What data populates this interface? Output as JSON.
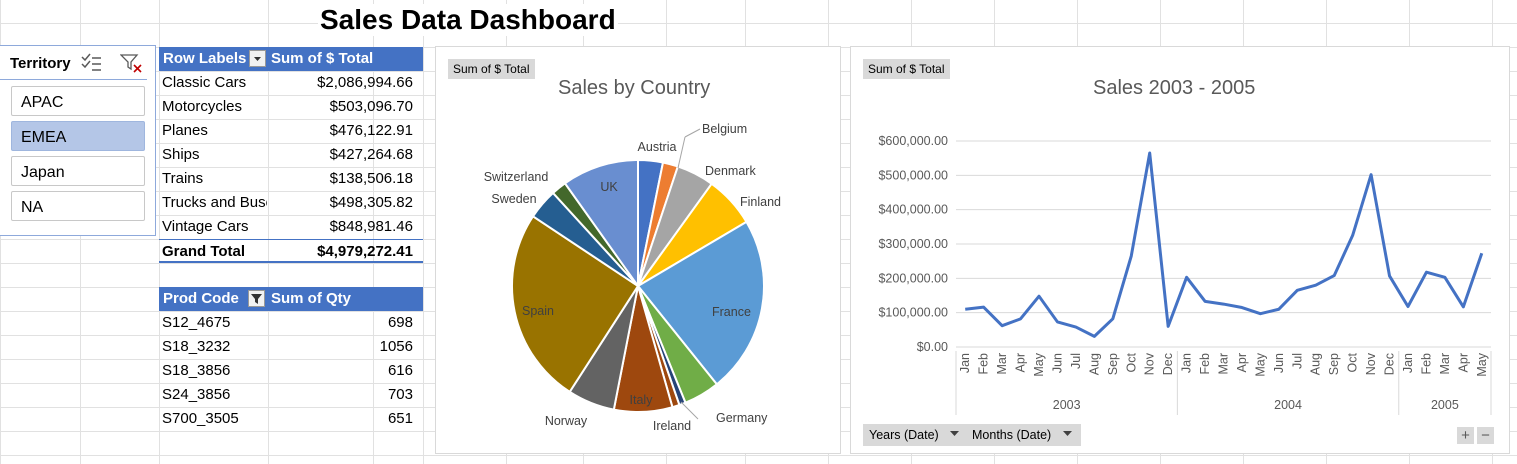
{
  "dashboard": {
    "title": "Sales Data Dashboard"
  },
  "slicer": {
    "title": "Territory",
    "items": [
      {
        "label": "APAC",
        "selected": false
      },
      {
        "label": "EMEA",
        "selected": true
      },
      {
        "label": "Japan",
        "selected": false
      },
      {
        "label": "NA",
        "selected": false
      }
    ]
  },
  "pivot_product_line": {
    "header_row": "Row Labels",
    "header_value": "Sum of $ Total",
    "rows": [
      {
        "label": "Classic Cars",
        "value": "$2,086,994.66"
      },
      {
        "label": "Motorcycles",
        "value": "$503,096.70"
      },
      {
        "label": "Planes",
        "value": "$476,122.91"
      },
      {
        "label": "Ships",
        "value": "$427,264.68"
      },
      {
        "label": "Trains",
        "value": "$138,506.18"
      },
      {
        "label": "Trucks and Buses",
        "value": "$498,305.82"
      },
      {
        "label": "Vintage Cars",
        "value": "$848,981.46"
      }
    ],
    "grand_total_label": "Grand Total",
    "grand_total_value": "$4,979,272.41"
  },
  "pivot_prod_code": {
    "header_row": "Prod Code",
    "header_value": "Sum of Qty",
    "rows": [
      {
        "label": "S12_4675",
        "value": "698"
      },
      {
        "label": "S18_3232",
        "value": "1056"
      },
      {
        "label": "S18_3856",
        "value": "616"
      },
      {
        "label": "S24_3856",
        "value": "703"
      },
      {
        "label": "S700_3505",
        "value": "651"
      }
    ]
  },
  "pie_chart": {
    "field_button": "Sum of $ Total",
    "title": "Sales by Country"
  },
  "line_chart": {
    "field_button": "Sum of $ Total",
    "title": "Sales 2003 - 2005",
    "axis_buttons": [
      "Years (Date)",
      "Months (Date)"
    ],
    "plus": "+",
    "minus": "−"
  },
  "chart_data": [
    {
      "type": "pie",
      "title": "Sales by Country",
      "slices": [
        {
          "name": "Austria",
          "value": 3.1,
          "color": "#4472c4"
        },
        {
          "name": "Belgium",
          "value": 1.9,
          "color": "#ed7d31"
        },
        {
          "name": "Denmark",
          "value": 4.7,
          "color": "#a5a5a5"
        },
        {
          "name": "Finland",
          "value": 6.4,
          "color": "#ffc000"
        },
        {
          "name": "France",
          "value": 22.2,
          "color": "#5b9bd5"
        },
        {
          "name": "Germany",
          "value": 4.5,
          "color": "#70ad47"
        },
        {
          "name": "",
          "value": 0.8,
          "color": "#264478"
        },
        {
          "name": "Ireland",
          "value": 0.9,
          "color": "#9e480e"
        },
        {
          "name": "Italy",
          "value": 7.3,
          "color": "#9e480e"
        },
        {
          "name": "Norway",
          "value": 5.9,
          "color": "#636363"
        },
        {
          "name": "Spain",
          "value": 24.6,
          "color": "#997300"
        },
        {
          "name": "Sweden",
          "value": 3.8,
          "color": "#255e91"
        },
        {
          "name": "Switzerland",
          "value": 1.9,
          "color": "#43682b"
        },
        {
          "name": "UK",
          "value": 9.6,
          "color": "#698ed0"
        }
      ]
    },
    {
      "type": "line",
      "title": "Sales 2003 - 2005",
      "x": [
        "Jan",
        "Feb",
        "Mar",
        "Apr",
        "May",
        "Jun",
        "Jul",
        "Aug",
        "Sep",
        "Oct",
        "Nov",
        "Dec",
        "Jan",
        "Feb",
        "Mar",
        "Apr",
        "May",
        "Jun",
        "Jul",
        "Aug",
        "Sep",
        "Oct",
        "Nov",
        "Dec",
        "Jan",
        "Feb",
        "Mar",
        "Apr",
        "May"
      ],
      "groups": [
        {
          "label": "2003",
          "count": 12
        },
        {
          "label": "2004",
          "count": 12
        },
        {
          "label": "2005",
          "count": 5
        }
      ],
      "series": [
        {
          "values": [
            110000,
            116000,
            62000,
            82000,
            148000,
            73000,
            58000,
            31000,
            82000,
            265000,
            565000,
            60000,
            203000,
            133000,
            125000,
            115000,
            97000,
            110000,
            165000,
            180000,
            208000,
            325000,
            502000,
            207000,
            118000,
            218000,
            203000,
            117000,
            273000
          ],
          "color": "#4472c4"
        }
      ],
      "yticks": [
        0,
        100000,
        200000,
        300000,
        400000,
        500000,
        600000
      ],
      "ytick_labels": [
        "$0.00",
        "$100,000.00",
        "$200,000.00",
        "$300,000.00",
        "$400,000.00",
        "$500,000.00",
        "$600,000.00"
      ],
      "ylim": [
        0,
        600000
      ],
      "grid": true
    }
  ]
}
